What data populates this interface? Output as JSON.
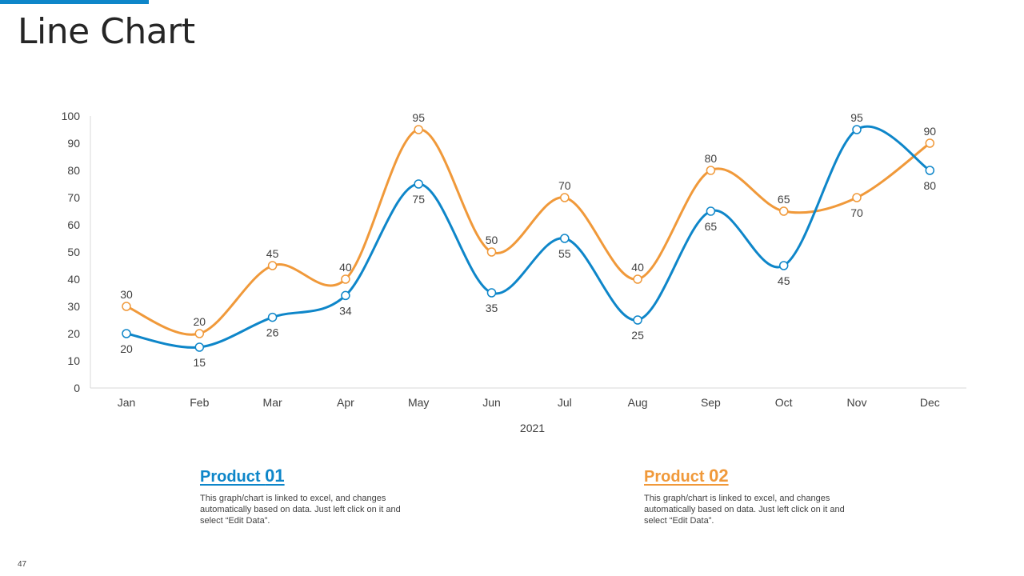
{
  "page": {
    "title": "Line Chart",
    "page_number": "47"
  },
  "colors": {
    "accent": "#0e86c9",
    "series1": "#0e86c9",
    "series2": "#f0993a"
  },
  "chart_data": {
    "type": "line",
    "categories": [
      "Jan",
      "Feb",
      "Mar",
      "Apr",
      "May",
      "Jun",
      "Jul",
      "Aug",
      "Sep",
      "Oct",
      "Nov",
      "Dec"
    ],
    "series": [
      {
        "name": "Product 01",
        "color": "#0e86c9",
        "values": [
          20,
          15,
          26,
          34,
          75,
          35,
          55,
          25,
          65,
          45,
          95,
          80
        ]
      },
      {
        "name": "Product 02",
        "color": "#f0993a",
        "values": [
          30,
          20,
          45,
          40,
          95,
          50,
          70,
          40,
          80,
          65,
          70,
          90
        ]
      }
    ],
    "xlabel": "2021",
    "ylabel": "",
    "ylim": [
      0,
      100
    ],
    "yticks": [
      0,
      10,
      20,
      30,
      40,
      50,
      60,
      70,
      80,
      90,
      100
    ],
    "smooth": true,
    "grid": false
  },
  "products": [
    {
      "label": "Product ",
      "number": "01",
      "description": "This graph/chart is linked to excel, and changes automatically based on data. Just left click on it and select “Edit Data”."
    },
    {
      "label": "Product ",
      "number": "02",
      "description": "This graph/chart is linked to excel, and changes automatically based on data. Just left click on it and select “Edit Data”."
    }
  ]
}
